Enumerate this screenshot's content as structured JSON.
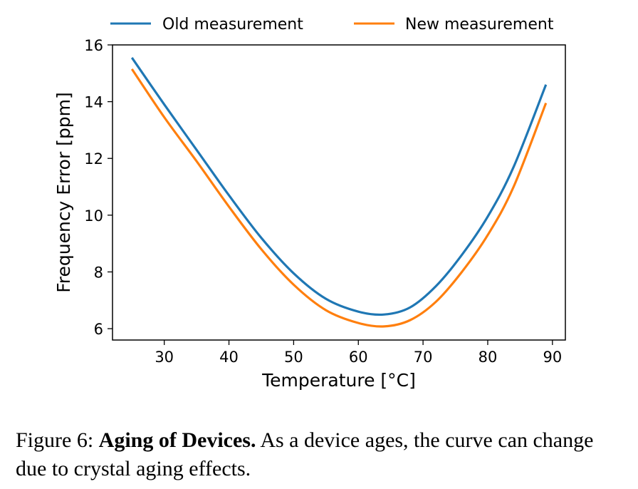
{
  "chart_data": {
    "type": "line",
    "title": "",
    "xlabel": "Temperature [°C]",
    "ylabel": "Frequency Error [ppm]",
    "xlim": [
      22,
      92
    ],
    "ylim": [
      5.6,
      16
    ],
    "x_ticks": [
      30,
      40,
      50,
      60,
      70,
      80,
      90
    ],
    "y_ticks": [
      6,
      8,
      10,
      12,
      14,
      16
    ],
    "grid": false,
    "legend_position": "top-center, above plot",
    "x": [
      25,
      30,
      35,
      40,
      45,
      50,
      55,
      60,
      64,
      68,
      72,
      76,
      80,
      84,
      89
    ],
    "series": [
      {
        "name": "Old measurement",
        "color": "#1f77b4",
        "values": [
          15.55,
          13.9,
          12.3,
          10.7,
          9.2,
          7.95,
          7.05,
          6.6,
          6.5,
          6.75,
          7.5,
          8.6,
          9.95,
          11.7,
          14.6
        ]
      },
      {
        "name": "New measurement",
        "color": "#ff7f0e",
        "values": [
          15.15,
          13.45,
          11.9,
          10.3,
          8.8,
          7.55,
          6.65,
          6.2,
          6.08,
          6.3,
          6.95,
          8.0,
          9.3,
          11.0,
          13.95
        ]
      }
    ]
  },
  "caption": {
    "prefix": "Figure 6: ",
    "bold": "Aging of Devices.",
    "rest": " As a device ages, the curve can change due to crystal aging effects."
  }
}
